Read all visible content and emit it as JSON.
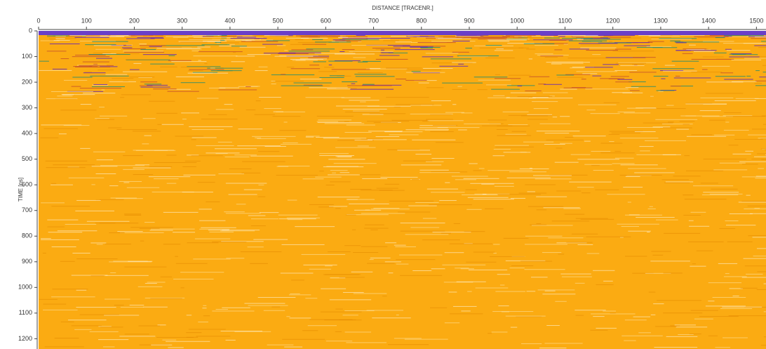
{
  "chart_data": {
    "type": "radargram",
    "title": "DISTANCE [TRACENR.]",
    "y_label": "TIME [ns]",
    "xlim": [
      0,
      1520
    ],
    "xticks": [
      0,
      100,
      200,
      300,
      400,
      500,
      600,
      700,
      800,
      900,
      1000,
      1100,
      1200,
      1300,
      1400,
      1500
    ],
    "ylim": [
      0,
      1240
    ],
    "yticks": [
      0,
      100,
      200,
      300,
      400,
      500,
      600,
      700,
      800,
      900,
      1000,
      1100,
      1200
    ],
    "y_reversed": true,
    "color": "#fbab12"
  }
}
